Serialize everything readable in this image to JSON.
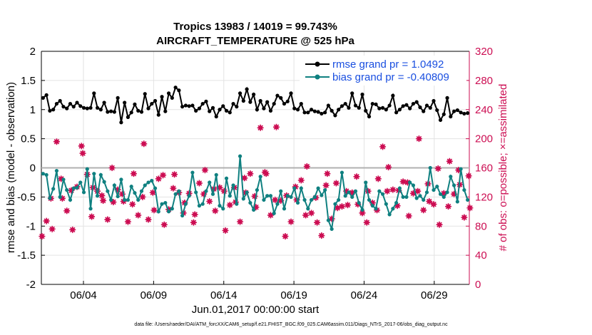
{
  "chart_data": {
    "type": "line",
    "title_line1": "Tropics 13983 / 14019 = 99.743%",
    "title_line2": "AIRCRAFT_TEMPERATURE @ 525 hPa",
    "ylabel_left": "rmse and bias (model - observation)",
    "ylabel_right": "# of obs: o=possible; ×=assimilated",
    "xlabel": "Jun.01,2017 00:00:00 start",
    "footnote": "data file: /Users/raeder/DAI/ATM_forcXX/CAM6_setup/f.e21.FHIST_BGC.f09_025.CAM6assim.011/Diags_NTrS_2017-06/obs_diag_output.nc",
    "ylim_left": [
      -2,
      2
    ],
    "ylim_right": [
      0,
      320
    ],
    "xlim_days": [
      0,
      30.5
    ],
    "left_ticks": [
      "-2",
      "-1.5",
      "-1",
      "-0.5",
      "0",
      "0.5",
      "1",
      "1.5",
      "2"
    ],
    "right_ticks": [
      "0",
      "40",
      "80",
      "120",
      "160",
      "200",
      "240",
      "280",
      "320"
    ],
    "x_tick_labels": [
      "06/04",
      "06/09",
      "06/14",
      "06/19",
      "06/24",
      "06/29"
    ],
    "x_tick_days": [
      3,
      8,
      13,
      18,
      23,
      28
    ],
    "colors": {
      "rmse": "#000000",
      "bias": "#0f8080",
      "obs": "#cc0d52",
      "zero_line": "#b0b0b0",
      "legend_text": "#1a4fe0"
    },
    "series": [
      {
        "name": "rmse grand pr = 1.0492",
        "axis": "left",
        "values": [
          1.2,
          1.25,
          0.98,
          1.0,
          1.1,
          1.15,
          1.05,
          1.02,
          1.1,
          1.05,
          1.12,
          1.06,
          1.03,
          1.02,
          1.03,
          1.28,
          1.03,
          1.0,
          1.12,
          0.96,
          0.97,
          0.96,
          1.2,
          0.78,
          1.12,
          0.87,
          0.95,
          1.09,
          0.98,
          0.96,
          1.27,
          1.02,
          1.1,
          1.15,
          0.91,
          1.22,
          0.97,
          1.28,
          1.2,
          1.38,
          1.33,
          1.05,
          1.07,
          1.06,
          1.07,
          0.98,
          1.02,
          1.1,
          1.14,
          0.97,
          1.03,
          0.88,
          1.0,
          1.06,
          0.98,
          0.95,
          1.1,
          1.05,
          1.28,
          1.15,
          1.35,
          1.13,
          1.26,
          1.0,
          1.15,
          1.02,
          1.13,
          0.98,
          1.1,
          1.24,
          1.2,
          1.1,
          1.14,
          1.28,
          1.02,
          1.0,
          1.1,
          0.95,
          0.95,
          1.0,
          0.97,
          0.96,
          0.93,
          0.95,
          1.07,
          0.98,
          0.9,
          1.0,
          1.06,
          1.1,
          1.03,
          1.28,
          1.07,
          1.03,
          1.26,
          0.98,
          0.88,
          1.1,
          1.09,
          1.02,
          1.03,
          1.0,
          1.07,
          1.24,
          0.95,
          1.0,
          1.06,
          1.08,
          1.02,
          1.1,
          1.13,
          1.04,
          0.97,
          1.07,
          1.03,
          1.15,
          0.99,
          0.82,
          0.92,
          1.2,
          0.88,
          0.97,
          0.99,
          0.95,
          0.93,
          0.94
        ]
      },
      {
        "name": "bias grand pr = -0.40809",
        "axis": "left",
        "values": [
          -0.1,
          -0.12,
          -0.52,
          -0.36,
          -0.05,
          -0.5,
          -0.2,
          -0.38,
          -0.55,
          -0.35,
          -0.34,
          -0.25,
          -0.42,
          -0.02,
          -0.7,
          -0.1,
          -0.48,
          -0.12,
          -0.24,
          -0.4,
          -0.55,
          -0.3,
          -0.49,
          -0.2,
          -0.55,
          -0.55,
          -0.32,
          -0.43,
          -0.55,
          -0.4,
          -0.3,
          -0.25,
          -0.22,
          -0.35,
          -0.75,
          -0.62,
          -0.6,
          -0.75,
          -0.7,
          -0.45,
          -0.4,
          -0.82,
          -0.62,
          -0.48,
          -0.08,
          -0.42,
          -0.65,
          -0.62,
          -0.4,
          -0.25,
          -0.45,
          -0.12,
          -0.65,
          -0.7,
          -0.18,
          -0.48,
          -0.3,
          -0.62,
          0.2,
          -0.53,
          -0.42,
          -0.6,
          -0.72,
          -0.38,
          -0.15,
          -0.55,
          -0.48,
          -0.48,
          -0.78,
          -0.62,
          -0.4,
          -0.7,
          -0.48,
          -0.5,
          -0.35,
          -0.6,
          -0.35,
          -0.55,
          -0.7,
          -0.55,
          -0.5,
          -0.35,
          -0.47,
          -0.38,
          -0.9,
          -1.05,
          -0.62,
          -0.55,
          -0.08,
          -0.48,
          -0.42,
          -0.5,
          -0.4,
          -0.6,
          -0.72,
          -0.25,
          -0.55,
          -0.65,
          -0.7,
          -0.4,
          -0.45,
          -0.62,
          -0.8,
          -0.7,
          -0.6,
          -0.35,
          -0.5,
          -0.5,
          -0.25,
          -0.3,
          -0.52,
          -0.48,
          -0.55,
          -0.42,
          0.0,
          -0.38,
          -0.32,
          -0.45,
          -0.5,
          -0.42,
          -0.15,
          -0.3,
          -0.58,
          -0.02,
          -0.38,
          -0.55
        ]
      },
      {
        "name": "observations possible/assimilated",
        "axis": "right",
        "values": [
          66,
          87,
          118,
          76,
          196,
          145,
          118,
          101,
          129,
          75,
          134,
          190,
          180,
          151,
          93,
          133,
          128,
          122,
          115,
          89,
          160,
          113,
          130,
          124,
          114,
          86,
          110,
          152,
          95,
          120,
          193,
          89,
          126,
          102,
          145,
          150,
          82,
          103,
          132,
          151,
          126,
          98,
          112,
          125,
          85,
          96,
          139,
          124,
          157,
          114,
          131,
          101,
          133,
          128,
          74,
          109,
          133,
          113,
          86,
          146,
          126,
          152,
          121,
          106,
          215,
          154,
          152,
          95,
          116,
          216,
          115,
          66,
          122,
          86,
          134,
          116,
          143,
          95,
          162,
          98,
          119,
          85,
          67,
          136,
          152,
          90,
          139,
          105,
          107,
          128,
          109,
          126,
          148,
          110,
          98,
          85,
          128,
          112,
          102,
          145,
          189,
          128,
          161,
          130,
          108,
          129,
          141,
          140,
          94,
          125,
          128,
          200,
          102,
          138,
          114,
          110,
          159,
          82,
          125,
          107,
          169,
          124,
          157,
          137,
          92,
          149,
          105
        ]
      }
    ],
    "legend": {
      "placement": "top-right",
      "entries": [
        "rmse grand pr = 1.0492",
        "bias grand pr = -0.40809"
      ]
    }
  }
}
